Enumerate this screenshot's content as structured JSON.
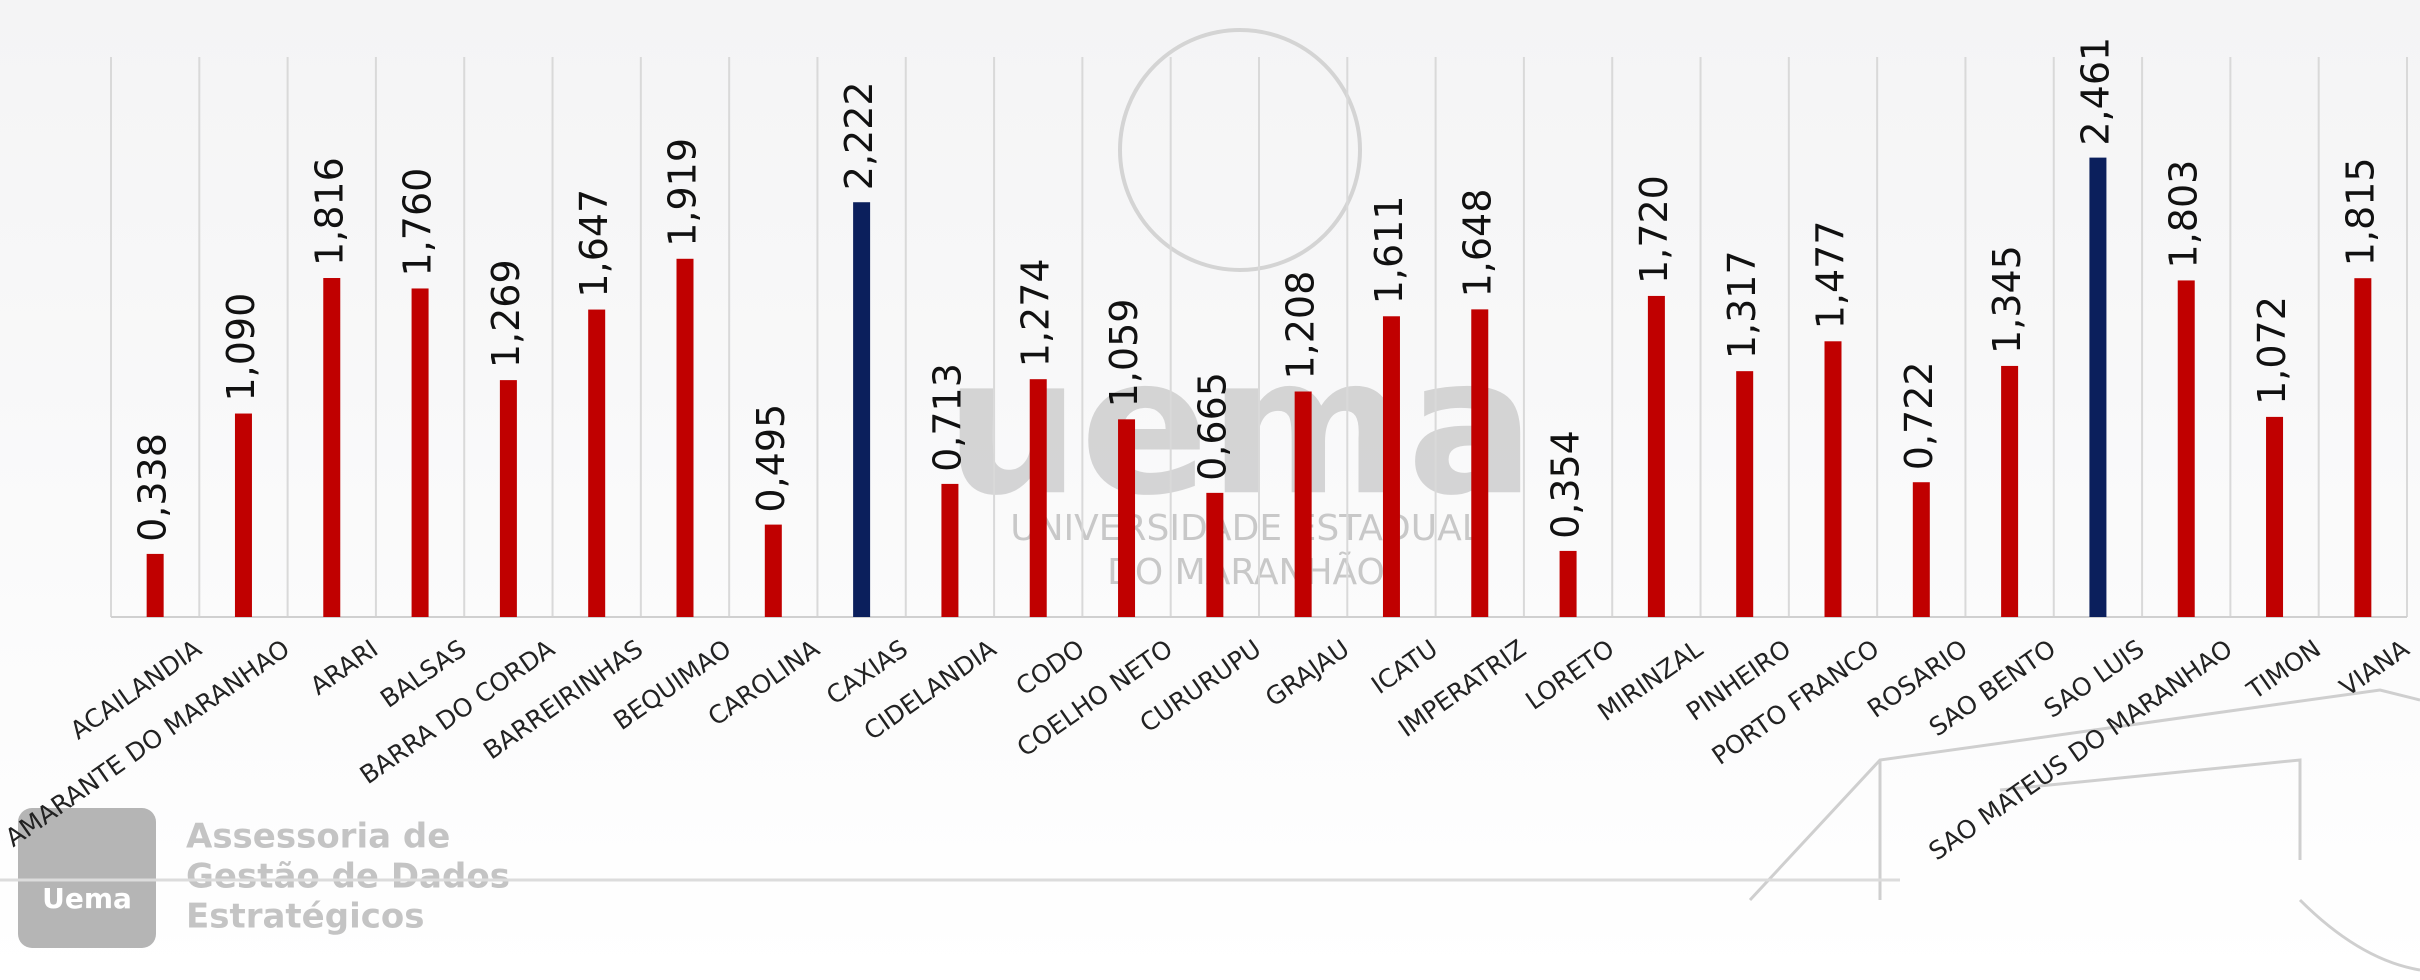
{
  "chart_data": {
    "type": "bar",
    "categories": [
      "ACAILANDIA",
      "AMARANTE DO MARANHAO",
      "ARARI",
      "BALSAS",
      "BARRA DO CORDA",
      "BARREIRINHAS",
      "BEQUIMAO",
      "CAROLINA",
      "CAXIAS",
      "CIDELANDIA",
      "CODO",
      "COELHO NETO",
      "CURURUPU",
      "GRAJAU",
      "ICATU",
      "IMPERATRIZ",
      "LORETO",
      "MIRINZAL",
      "PINHEIRO",
      "PORTO FRANCO",
      "ROSARIO",
      "SAO BENTO",
      "SAO LUIS",
      "SAO MATEUS DO MARANHAO",
      "TIMON",
      "VIANA"
    ],
    "values": [
      0.338,
      1.09,
      1.816,
      1.76,
      1.269,
      1.647,
      1.919,
      0.495,
      2.222,
      0.713,
      1.274,
      1.059,
      0.665,
      1.208,
      1.611,
      1.648,
      0.354,
      1.72,
      1.317,
      1.477,
      0.722,
      1.345,
      2.461,
      1.803,
      1.072,
      1.815
    ],
    "value_labels": [
      "0,338",
      "1,090",
      "1,816",
      "1,760",
      "1,269",
      "1,647",
      "1,919",
      "0,495",
      "2,222",
      "0,713",
      "1,274",
      "1,059",
      "0,665",
      "1,208",
      "1,611",
      "1,648",
      "0,354",
      "1,720",
      "1,317",
      "1,477",
      "0,722",
      "1,345",
      "2,461",
      "1,803",
      "1,072",
      "1,815"
    ],
    "colors": [
      "#c00000",
      "#c00000",
      "#c00000",
      "#c00000",
      "#c00000",
      "#c00000",
      "#c00000",
      "#c00000",
      "#0b1f5c",
      "#c00000",
      "#c00000",
      "#c00000",
      "#c00000",
      "#c00000",
      "#c00000",
      "#c00000",
      "#c00000",
      "#c00000",
      "#c00000",
      "#c00000",
      "#c00000",
      "#c00000",
      "#0b1f5c",
      "#c00000",
      "#c00000",
      "#c00000"
    ],
    "ylim": [
      0,
      3
    ],
    "grid": true
  },
  "branding": {
    "logo": "Uema",
    "lines": [
      "Assessoria de",
      "Gestão de Dados",
      "Estratégicos"
    ],
    "watermark": "uema",
    "watermark_sub": [
      "UNIVERSIDADE ESTADUAL",
      "DO MARANHÃO"
    ]
  }
}
